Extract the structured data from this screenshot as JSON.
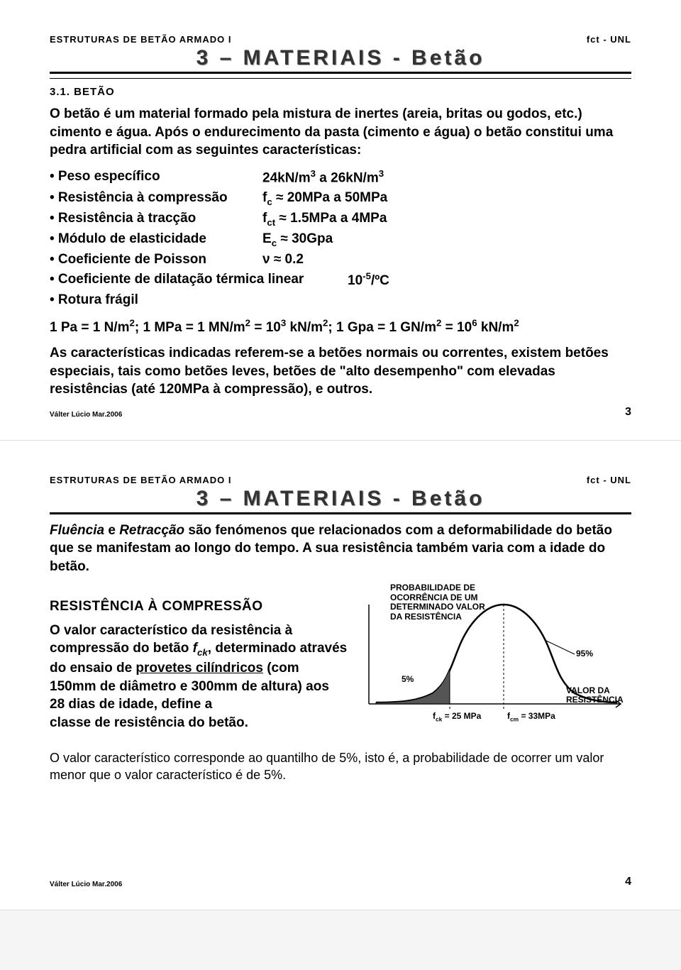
{
  "header": {
    "left": "ESTRUTURAS DE BETÃO ARMADO I",
    "right": "fct - UNL",
    "title": "3 – MATERIAIS - Betão"
  },
  "slide3": {
    "section_no": "3.1. BETÃO",
    "intro": "O betão é um material formado pela mistura de inertes (areia, britas ou godos, etc.) cimento e água. Após o endurecimento da pasta (cimento e água) o betão constitui uma pedra artificial com as seguintes características:",
    "chars": [
      {
        "label": "• Peso específico",
        "value_html": "24kN/m<sup>3</sup> a 26kN/m<sup>3</sup>"
      },
      {
        "label": "• Resistência à compressão",
        "value_html": "f<sub>c</sub> ≈ 20MPa a 50MPa"
      },
      {
        "label": "• Resistência à tracção",
        "value_html": "f<sub>ct</sub> ≈ 1.5MPa a 4MPa"
      },
      {
        "label": "• Módulo de elasticidade",
        "value_html": "E<sub>c</sub> ≈ 30Gpa"
      },
      {
        "label": "• Coeficiente de Poisson",
        "value_html": "ν ≈ 0.2"
      }
    ],
    "char_dilat_label": "• Coeficiente de dilatação térmica linear",
    "char_dilat_value": "10<sup>-5</sup>/ºC",
    "char_rotura": "• Rotura frágil",
    "unit_line": "1 Pa = 1 N/m<sup>2</sup>; 1 MPa = 1 MN/m<sup>2</sup> = 10<sup>3</sup> kN/m<sup>2</sup>; 1 Gpa = 1 GN/m<sup>2</sup> = 10<sup>6</sup> kN/m<sup>2</sup>",
    "note": "As características indicadas referem-se a betões normais ou correntes, existem betões especiais, tais como betões leves, betões de \"alto desempenho\" com elevadas resistências (até 120MPa à compressão), e outros.",
    "footer_author": "Válter Lúcio Mar.2006",
    "footer_page": "3"
  },
  "slide4": {
    "intro_pre": "Fluência",
    "intro_mid1": " e ",
    "intro_mid2": "Retracção",
    "intro_rest": " são fenómenos que relacionados com a deformabilidade do betão que se manifestam ao longo do tempo. A sua resistência também varia com a idade do betão.",
    "subsection": "RESISTÊNCIA À COMPRESSÃO",
    "left_p1": "O valor característico da resistência à compressão do betão ",
    "fck": "f",
    "fck_sub": "ck",
    "left_p2": ", determinado através do ensaio de ",
    "provetes": "provetes cilíndricos",
    "left_p3": " (com 150mm de diâmetro e 300mm de altura) aos 28 dias de idade, define a",
    "left_p4": "classe de resistência do betão.",
    "chart": {
      "caption": "PROBABILIDADE DE OCORRÊNCIA DE UM DETERMINADO VALOR DA RESISTÊNCIA",
      "label_5pct": "5%",
      "label_95pct": "95%",
      "xaxis_right": "VALOR DA RESISTÊNCIA",
      "tick_fck": "f",
      "tick_fck_sub": "ck",
      "tick_fck_val": " = 25 MPa",
      "tick_fcm": "f",
      "tick_fcm_sub": "cm",
      "tick_fcm_val": " = 33MPa",
      "curve_color": "#000000",
      "fill_color": "#555555",
      "background": "#ffffff",
      "stroke_width": 2.5
    },
    "bottom_note": "O valor característico corresponde ao quantilho de 5%, isto é, a probabilidade de ocorrer um valor menor que o valor característico é de 5%.",
    "footer_author": "Válter Lúcio Mar.2006",
    "footer_page": "4"
  }
}
